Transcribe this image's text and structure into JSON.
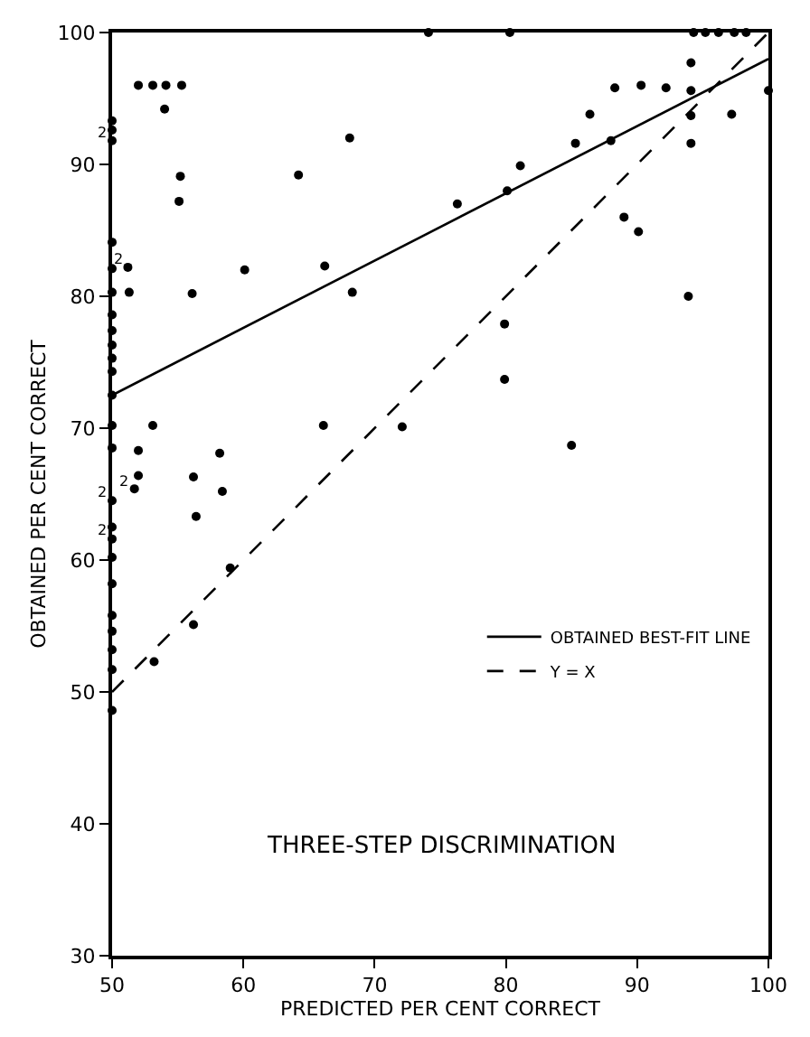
{
  "chart_data": {
    "type": "scatter",
    "xlabel": "PREDICTED PER CENT CORRECT",
    "ylabel": "OBTAINED PER CENT CORRECT",
    "xlim": [
      50,
      100
    ],
    "ylim": [
      30,
      100
    ],
    "xticks": [
      50,
      60,
      70,
      80,
      90,
      100
    ],
    "yticks": [
      30,
      40,
      50,
      60,
      70,
      80,
      90,
      100
    ],
    "legend": "bottom right",
    "marker": "circle",
    "series": [
      {
        "color": "#000000",
        "x": [
          52,
          53.1,
          54.1,
          55.3,
          54,
          55.2,
          55.1,
          64.2,
          68.1,
          51.3,
          56.1,
          60.1,
          66.2,
          68.3,
          51.2,
          53.1,
          66.1,
          72.1,
          52,
          58.2,
          52,
          56.2,
          51.7,
          58.4,
          56.4,
          59,
          56.2,
          53.2,
          50,
          50,
          50,
          50,
          50,
          50,
          50,
          50,
          50,
          50,
          50,
          50,
          50,
          50,
          50,
          50,
          50,
          50,
          50,
          50,
          50,
          50,
          50,
          50,
          74.1,
          80.3,
          94.3,
          95.2,
          96.2,
          97.4,
          98.3,
          94.1,
          88.3,
          90.3,
          92.2,
          94.1,
          100,
          86.4,
          94.1,
          97.2,
          85.3,
          88,
          94.1,
          81.1,
          76.3,
          80.1,
          89,
          90.1,
          93.9,
          79.9,
          79.9,
          85
        ],
        "values": [
          96,
          96,
          96,
          96,
          94.2,
          89.1,
          87.2,
          89.2,
          92,
          80.3,
          80.2,
          82,
          82.3,
          80.3,
          82.2,
          70.2,
          70.2,
          70.1,
          68.3,
          68.1,
          66.4,
          66.3,
          65.4,
          65.2,
          63.3,
          59.4,
          55.1,
          52.3,
          93.3,
          92.6,
          91.8,
          84.1,
          82.1,
          80.3,
          78.6,
          77.4,
          76.3,
          75.3,
          74.3,
          72.5,
          70.2,
          68.5,
          64.5,
          62.5,
          61.6,
          60.2,
          58.2,
          55.8,
          54.6,
          53.2,
          51.7,
          48.6,
          100,
          100,
          100,
          100,
          100,
          100,
          100,
          97.7,
          95.8,
          96,
          95.8,
          95.6,
          95.6,
          93.8,
          93.7,
          93.8,
          91.6,
          91.8,
          91.6,
          89.9,
          87,
          88,
          86,
          84.9,
          80,
          77.9,
          73.7,
          68.7
        ]
      },
      {
        "type": "line",
        "name": "OBTAINED BEST-FIT LINE",
        "color": "#000000",
        "line_style": "solid",
        "marker": "none",
        "x": [
          50,
          100
        ],
        "values": [
          72.5,
          98
        ]
      },
      {
        "type": "line",
        "name": "Y = X",
        "color": "#000000",
        "line_style": "dashed",
        "marker": "none",
        "x": [
          50,
          100
        ],
        "values": [
          50,
          100
        ]
      }
    ],
    "annotations": [
      "THREE-STEP DISCRIMINATION",
      {
        "text": "2",
        "x": 50,
        "y": 91.8
      },
      {
        "text": "2",
        "x": 51.2,
        "y": 82.2
      },
      {
        "text": "2",
        "x": 51.7,
        "y": 65.4
      },
      {
        "text": "2",
        "x": 50,
        "y": 64.5
      },
      {
        "text": "2",
        "x": 50,
        "y": 61.6
      }
    ]
  }
}
